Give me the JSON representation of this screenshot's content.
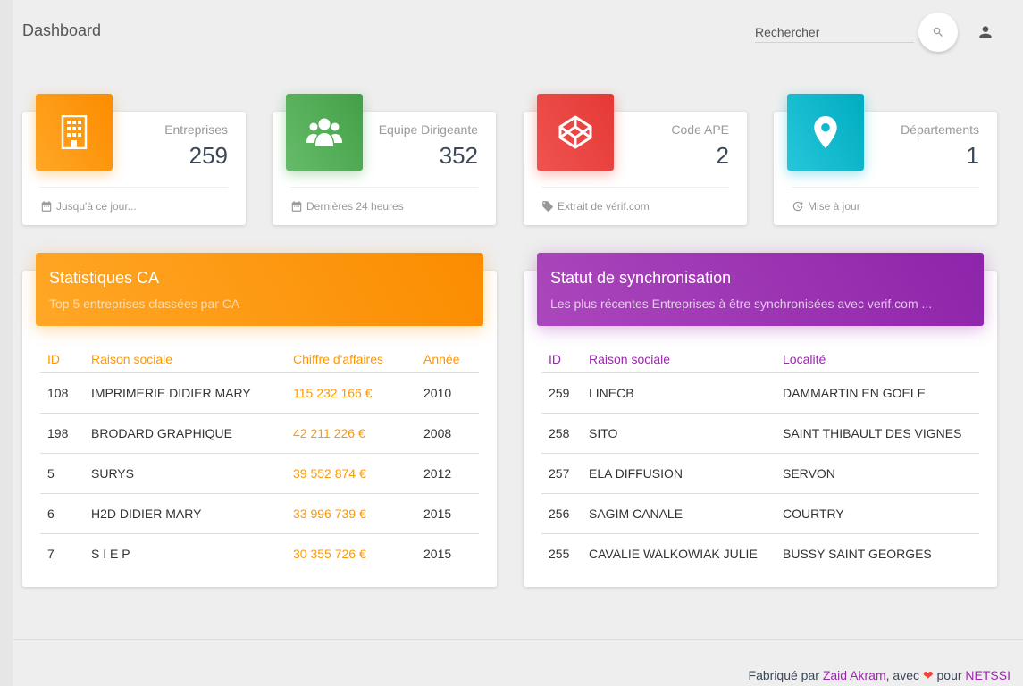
{
  "navbar": {
    "brand": "Dashboard",
    "search_placeholder": "Rechercher"
  },
  "stats": [
    {
      "label": "Entreprises",
      "value": "259",
      "footer": "Jusqu'à ce jour...",
      "color": "#ff9800",
      "icon": "building-icon",
      "footer_icon": "calendar-icon"
    },
    {
      "label": "Equipe Dirigeante",
      "value": "352",
      "footer": "Dernières 24 heures",
      "color": "#4caf50",
      "icon": "group-icon",
      "footer_icon": "calendar-icon"
    },
    {
      "label": "Code APE",
      "value": "2",
      "footer": "Extrait de vérif.com",
      "color": "#f44336",
      "icon": "codepen-icon",
      "footer_icon": "tag-icon"
    },
    {
      "label": "Départements",
      "value": "1",
      "footer": "Mise à jour",
      "color": "#00bcd4",
      "icon": "location-pin-icon",
      "footer_icon": "update-icon"
    }
  ],
  "ca_table": {
    "title": "Statistiques CA",
    "subtitle": "Top 5 entreprises classées par CA",
    "columns": [
      "ID",
      "Raison sociale",
      "Chiffre d'affaires",
      "Année"
    ],
    "rows": [
      [
        "108",
        "IMPRIMERIE DIDIER MARY",
        "115 232 166 €",
        "2010"
      ],
      [
        "198",
        "BRODARD GRAPHIQUE",
        "42 211 226 €",
        "2008"
      ],
      [
        "5",
        "SURYS",
        "39 552 874 €",
        "2012"
      ],
      [
        "6",
        "H2D DIDIER MARY",
        "33 996 739 €",
        "2015"
      ],
      [
        "7",
        "S I E P",
        "30 355 726 €",
        "2015"
      ]
    ]
  },
  "sync_table": {
    "title": "Statut de synchronisation",
    "subtitle": "Les plus récentes Entreprises à être synchronisées avec verif.com ...",
    "columns": [
      "ID",
      "Raison sociale",
      "Localité"
    ],
    "rows": [
      [
        "259",
        "LINECB",
        "DAMMARTIN EN GOELE"
      ],
      [
        "258",
        "SITO",
        "SAINT THIBAULT DES VIGNES"
      ],
      [
        "257",
        "ELA DIFFUSION",
        "SERVON"
      ],
      [
        "256",
        "SAGIM CANALE",
        "COURTRY"
      ],
      [
        "255",
        "CAVALIE WALKOWIAK JULIE",
        "BUSSY SAINT GEORGES"
      ]
    ]
  },
  "footer": {
    "made_by": "Fabriqué par",
    "author": "Zaid Akram",
    "with": ", avec",
    "heart": "❤",
    "for": "pour",
    "company": "NETSSI"
  },
  "colors": {
    "orange": "#ff9800",
    "green": "#4caf50",
    "red": "#f44336",
    "cyan": "#00bcd4",
    "purple": "#9c27b0"
  }
}
